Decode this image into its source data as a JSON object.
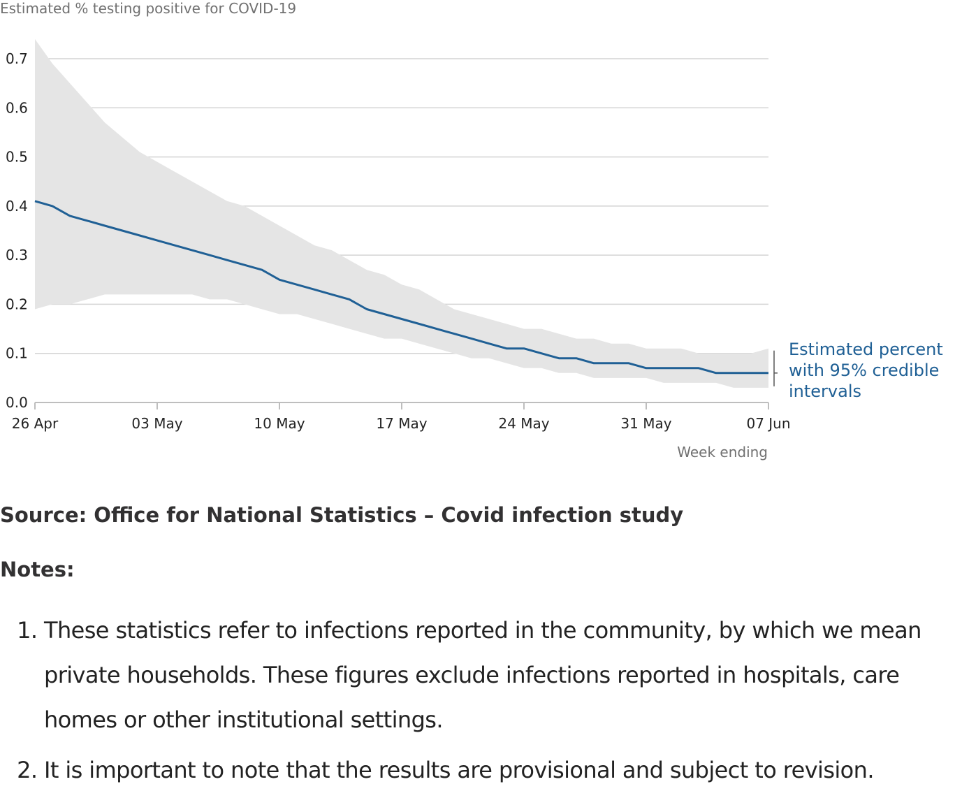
{
  "chart_data": {
    "type": "line",
    "title": "Estimated % testing positive for COVID-19",
    "xlabel": "Week ending",
    "ylabel": "",
    "ylim": [
      0,
      0.7
    ],
    "y_ticks": [
      "0.0",
      "0.1",
      "0.2",
      "0.3",
      "0.4",
      "0.5",
      "0.6",
      "0.7"
    ],
    "x_ticks": [
      "26 Apr",
      "03 May",
      "10 May",
      "17 May",
      "24 May",
      "31 May",
      "07 Jun"
    ],
    "x_start": "2021-04-26",
    "x_end": "2021-06-07",
    "grid": true,
    "series": [
      {
        "name": "Estimated percent with 95% credible intervals",
        "color": "#206095",
        "x": [
          "2021-04-26",
          "2021-04-27",
          "2021-04-28",
          "2021-04-29",
          "2021-04-30",
          "2021-05-01",
          "2021-05-02",
          "2021-05-03",
          "2021-05-04",
          "2021-05-05",
          "2021-05-06",
          "2021-05-07",
          "2021-05-08",
          "2021-05-09",
          "2021-05-10",
          "2021-05-11",
          "2021-05-12",
          "2021-05-13",
          "2021-05-14",
          "2021-05-15",
          "2021-05-16",
          "2021-05-17",
          "2021-05-18",
          "2021-05-19",
          "2021-05-20",
          "2021-05-21",
          "2021-05-22",
          "2021-05-23",
          "2021-05-24",
          "2021-05-25",
          "2021-05-26",
          "2021-05-27",
          "2021-05-28",
          "2021-05-29",
          "2021-05-30",
          "2021-05-31",
          "2021-06-01",
          "2021-06-02",
          "2021-06-03",
          "2021-06-04",
          "2021-06-05",
          "2021-06-06",
          "2021-06-07"
        ],
        "values": [
          0.41,
          0.4,
          0.38,
          0.37,
          0.36,
          0.35,
          0.34,
          0.33,
          0.32,
          0.31,
          0.3,
          0.29,
          0.28,
          0.27,
          0.25,
          0.24,
          0.23,
          0.22,
          0.21,
          0.19,
          0.18,
          0.17,
          0.16,
          0.15,
          0.14,
          0.13,
          0.12,
          0.11,
          0.11,
          0.1,
          0.09,
          0.09,
          0.08,
          0.08,
          0.08,
          0.07,
          0.07,
          0.07,
          0.07,
          0.06,
          0.06,
          0.06,
          0.06
        ],
        "lower": [
          0.19,
          0.2,
          0.2,
          0.21,
          0.22,
          0.22,
          0.22,
          0.22,
          0.22,
          0.22,
          0.21,
          0.21,
          0.2,
          0.19,
          0.18,
          0.18,
          0.17,
          0.16,
          0.15,
          0.14,
          0.13,
          0.13,
          0.12,
          0.11,
          0.1,
          0.09,
          0.09,
          0.08,
          0.07,
          0.07,
          0.06,
          0.06,
          0.05,
          0.05,
          0.05,
          0.05,
          0.04,
          0.04,
          0.04,
          0.04,
          0.03,
          0.03,
          0.03
        ],
        "upper": [
          0.74,
          0.69,
          0.65,
          0.61,
          0.57,
          0.54,
          0.51,
          0.49,
          0.47,
          0.45,
          0.43,
          0.41,
          0.4,
          0.38,
          0.36,
          0.34,
          0.32,
          0.31,
          0.29,
          0.27,
          0.26,
          0.24,
          0.23,
          0.21,
          0.19,
          0.18,
          0.17,
          0.16,
          0.15,
          0.15,
          0.14,
          0.13,
          0.13,
          0.12,
          0.12,
          0.11,
          0.11,
          0.11,
          0.1,
          0.1,
          0.1,
          0.1,
          0.11
        ]
      }
    ],
    "annotation": [
      "Estimated percent",
      "with 95% credible",
      "intervals"
    ]
  },
  "source": "Source: Office for National Statistics – Covid infection study",
  "notes": {
    "heading": "Notes:",
    "items": [
      "These statistics refer to infections reported in the community, by which we mean private households. These figures exclude infections reported in hospitals, care homes or other institutional settings.",
      "It is important to note that the results are provisional and subject to revision."
    ]
  },
  "colors": {
    "line": "#206095",
    "band": "#e5e5e5",
    "grid": "#d4d4d4",
    "axis": "#bebebe"
  }
}
